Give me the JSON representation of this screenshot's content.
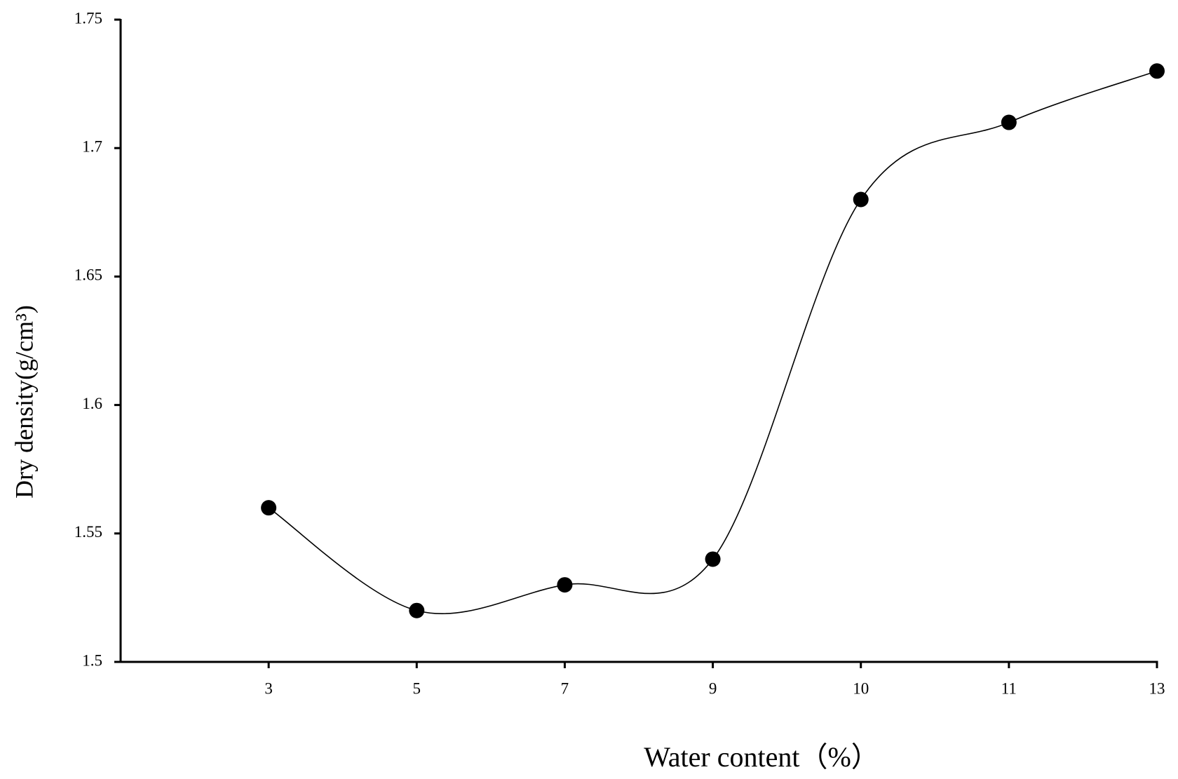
{
  "chart_data": {
    "type": "line",
    "x_label": "Water content（%）",
    "y_label": "Dry density(g/cm³)",
    "categories": [
      "3",
      "5",
      "7",
      "9",
      "10",
      "11",
      "13"
    ],
    "series": [
      {
        "color": "#000000",
        "values": [
          1.56,
          1.52,
          1.53,
          1.54,
          1.68,
          1.71,
          1.73
        ]
      }
    ],
    "ylim": [
      1.5,
      1.75
    ],
    "yticks": [
      1.5,
      1.55,
      1.6,
      1.65,
      1.7,
      1.75
    ],
    "smooth": true,
    "grid": false
  }
}
